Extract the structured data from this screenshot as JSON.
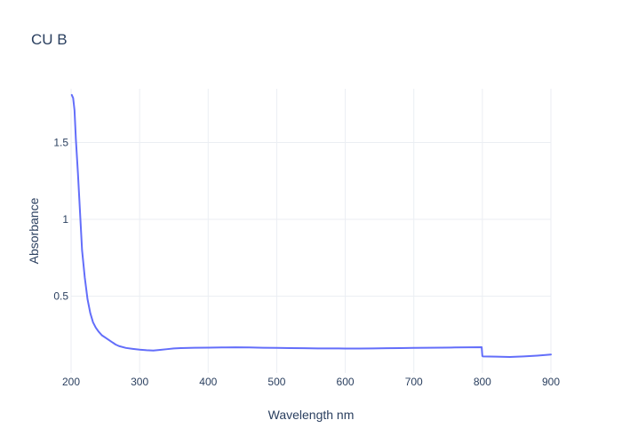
{
  "chart_data": {
    "type": "line",
    "title": "CU B",
    "xlabel": "Wavelength nm",
    "ylabel": "Absorbance",
    "xlim": [
      200,
      900
    ],
    "ylim": [
      0,
      1.85
    ],
    "x_ticks": [
      {
        "value": 200,
        "label": "200"
      },
      {
        "value": 300,
        "label": "300"
      },
      {
        "value": 400,
        "label": "400"
      },
      {
        "value": 500,
        "label": "500"
      },
      {
        "value": 600,
        "label": "600"
      },
      {
        "value": 700,
        "label": "700"
      },
      {
        "value": 800,
        "label": "800"
      },
      {
        "value": 900,
        "label": "900"
      }
    ],
    "y_ticks": [
      {
        "value": 0.5,
        "label": "0.5"
      },
      {
        "value": 1,
        "label": "1"
      },
      {
        "value": 1.5,
        "label": "1.5"
      }
    ],
    "grid": true,
    "legend": "none",
    "series": [
      {
        "color": "#636efa",
        "x": [
          201,
          203,
          205,
          207,
          210,
          213,
          216,
          220,
          224,
          228,
          232,
          236,
          240,
          245,
          250,
          255,
          260,
          265,
          270,
          280,
          290,
          300,
          310,
          320,
          330,
          340,
          350,
          360,
          380,
          400,
          420,
          440,
          460,
          480,
          500,
          520,
          540,
          560,
          580,
          600,
          620,
          640,
          660,
          680,
          700,
          720,
          740,
          760,
          780,
          799,
          800,
          801,
          820,
          840,
          860,
          880,
          900
        ],
        "y": [
          1.81,
          1.79,
          1.71,
          1.52,
          1.3,
          1.05,
          0.8,
          0.62,
          0.48,
          0.39,
          0.33,
          0.295,
          0.27,
          0.245,
          0.23,
          0.215,
          0.2,
          0.185,
          0.175,
          0.163,
          0.157,
          0.152,
          0.148,
          0.146,
          0.15,
          0.155,
          0.16,
          0.162,
          0.164,
          0.165,
          0.166,
          0.167,
          0.166,
          0.164,
          0.163,
          0.162,
          0.161,
          0.16,
          0.16,
          0.159,
          0.159,
          0.16,
          0.161,
          0.162,
          0.163,
          0.164,
          0.165,
          0.166,
          0.167,
          0.168,
          0.11,
          0.108,
          0.106,
          0.104,
          0.108,
          0.113,
          0.12
        ]
      }
    ]
  }
}
